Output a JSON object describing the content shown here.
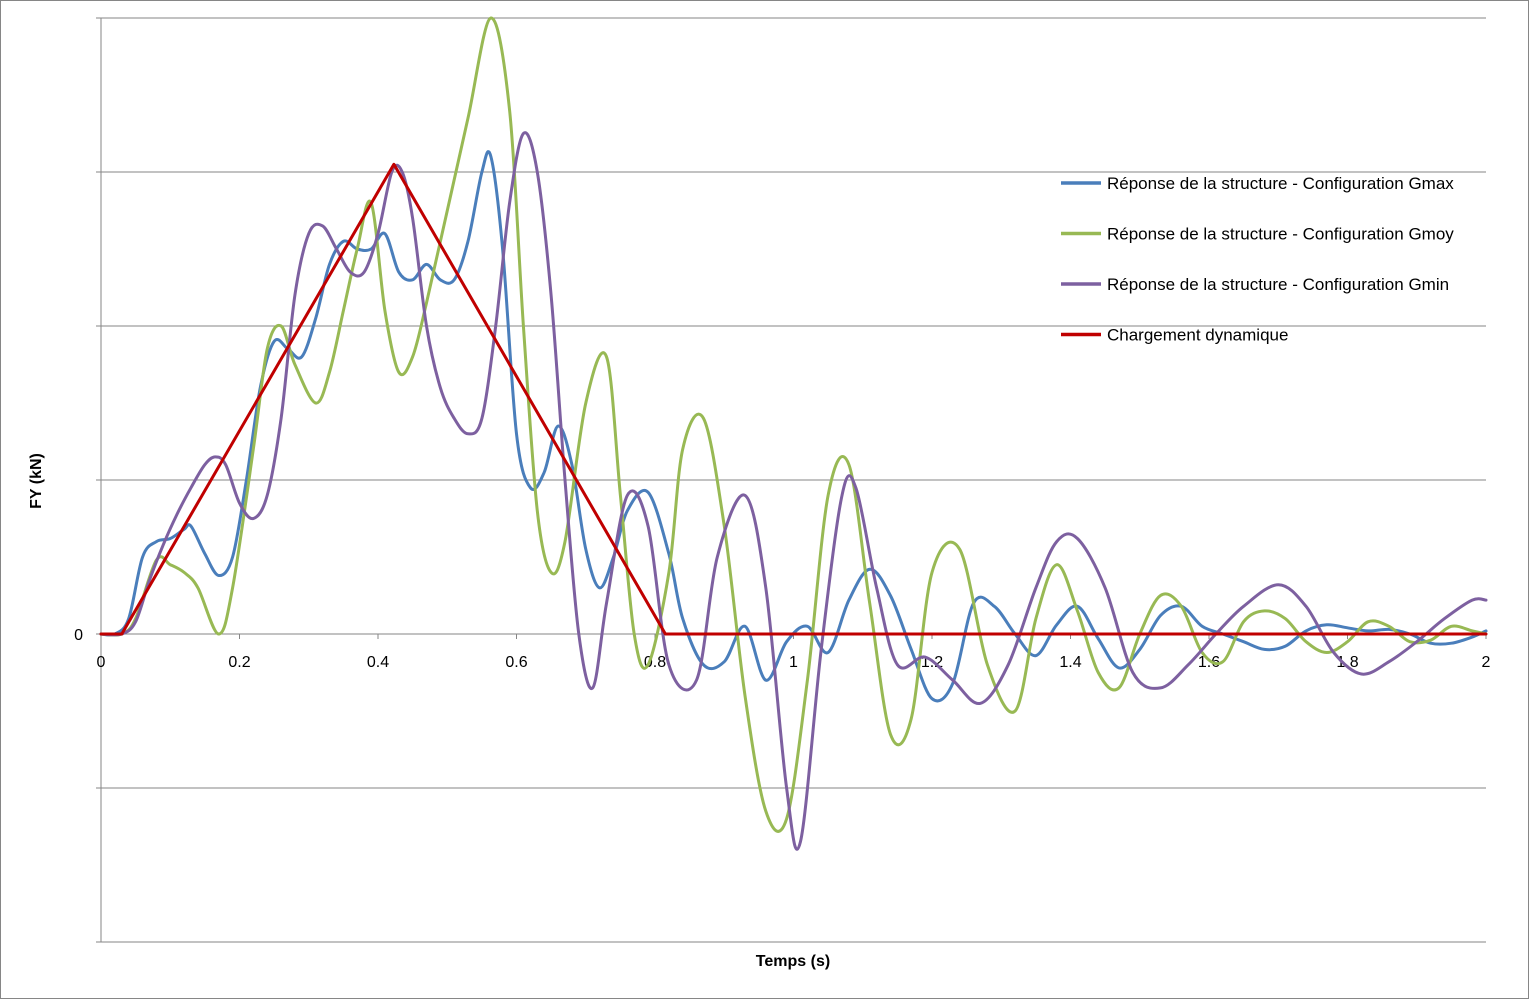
{
  "chart_data": {
    "type": "line",
    "title": "",
    "xlabel": "Temps (s)",
    "ylabel": "FY (kN)",
    "xlim": [
      0,
      2
    ],
    "x_ticks": [
      "0",
      "0.2",
      "0.4",
      "0.6",
      "0.8",
      "1",
      "1.2",
      "1.4",
      "1.6",
      "1.8",
      "2"
    ],
    "x_tick_values": [
      0,
      0.2,
      0.4,
      0.6,
      0.8,
      1.0,
      1.2,
      1.4,
      1.6,
      1.8,
      2.0
    ],
    "y_levels": [
      -2,
      -1,
      0,
      1,
      2,
      3,
      4
    ],
    "y_tick_labels": [
      {
        "level": 0,
        "text": "0"
      }
    ],
    "ylim": [
      -2,
      4
    ],
    "grid": "horizontal major gridlines",
    "legend_position": "right",
    "series": [
      {
        "name": "Réponse de la structure - Configuration Gmax",
        "color": "#4a7ebb",
        "x": [
          0,
          0.02,
          0.04,
          0.06,
          0.08,
          0.1,
          0.12,
          0.13,
          0.15,
          0.17,
          0.19,
          0.21,
          0.23,
          0.25,
          0.27,
          0.29,
          0.31,
          0.33,
          0.35,
          0.37,
          0.39,
          0.41,
          0.43,
          0.45,
          0.47,
          0.49,
          0.51,
          0.53,
          0.55,
          0.563,
          0.58,
          0.6,
          0.62,
          0.64,
          0.66,
          0.68,
          0.7,
          0.72,
          0.74,
          0.76,
          0.79,
          0.82,
          0.84,
          0.87,
          0.9,
          0.93,
          0.96,
          0.99,
          1.02,
          1.05,
          1.08,
          1.11,
          1.14,
          1.17,
          1.2,
          1.23,
          1.26,
          1.29,
          1.32,
          1.35,
          1.38,
          1.41,
          1.44,
          1.47,
          1.5,
          1.53,
          1.56,
          1.59,
          1.62,
          1.65,
          1.68,
          1.71,
          1.74,
          1.77,
          1.8,
          1.83,
          1.86,
          1.89,
          1.92,
          1.95,
          1.98,
          2.0
        ],
        "y": [
          0,
          0,
          0.1,
          0.5,
          0.6,
          0.62,
          0.68,
          0.7,
          0.52,
          0.38,
          0.5,
          1.0,
          1.6,
          1.9,
          1.85,
          1.8,
          2.05,
          2.4,
          2.55,
          2.5,
          2.5,
          2.6,
          2.35,
          2.3,
          2.4,
          2.3,
          2.3,
          2.55,
          3.0,
          3.1,
          2.5,
          1.3,
          0.95,
          1.05,
          1.35,
          1.1,
          0.55,
          0.3,
          0.5,
          0.8,
          0.92,
          0.52,
          0.1,
          -0.2,
          -0.18,
          0.05,
          -0.3,
          -0.05,
          0.05,
          -0.12,
          0.22,
          0.42,
          0.25,
          -0.1,
          -0.42,
          -0.32,
          0.2,
          0.18,
          0.0,
          -0.14,
          0.06,
          0.18,
          -0.03,
          -0.22,
          -0.1,
          0.12,
          0.18,
          0.05,
          0.0,
          -0.05,
          -0.1,
          -0.08,
          0.02,
          0.06,
          0.04,
          0.02,
          0.03,
          0.0,
          -0.06,
          -0.06,
          -0.02,
          0.02
        ]
      },
      {
        "name": "Réponse de la structure - Configuration Gmoy",
        "color": "#98b954",
        "x": [
          0,
          0.03,
          0.05,
          0.08,
          0.1,
          0.12,
          0.14,
          0.17,
          0.19,
          0.22,
          0.24,
          0.26,
          0.28,
          0.31,
          0.33,
          0.35,
          0.37,
          0.39,
          0.41,
          0.43,
          0.45,
          0.47,
          0.5,
          0.53,
          0.563,
          0.59,
          0.61,
          0.63,
          0.65,
          0.67,
          0.7,
          0.73,
          0.75,
          0.77,
          0.79,
          0.82,
          0.84,
          0.87,
          0.9,
          0.93,
          0.96,
          0.99,
          1.02,
          1.05,
          1.08,
          1.11,
          1.14,
          1.17,
          1.2,
          1.24,
          1.28,
          1.32,
          1.35,
          1.38,
          1.41,
          1.44,
          1.47,
          1.5,
          1.53,
          1.56,
          1.59,
          1.62,
          1.65,
          1.68,
          1.71,
          1.74,
          1.77,
          1.8,
          1.83,
          1.86,
          1.89,
          1.92,
          1.95,
          1.98,
          2.0
        ],
        "y": [
          0,
          0,
          0.1,
          0.48,
          0.45,
          0.4,
          0.3,
          0.0,
          0.3,
          1.2,
          1.85,
          2.0,
          1.75,
          1.5,
          1.7,
          2.1,
          2.5,
          2.8,
          2.1,
          1.7,
          1.8,
          2.15,
          2.75,
          3.35,
          4.0,
          3.4,
          2.0,
          0.8,
          0.4,
          0.6,
          1.5,
          1.8,
          0.9,
          0.0,
          -0.2,
          0.4,
          1.2,
          1.4,
          0.7,
          -0.4,
          -1.15,
          -1.2,
          -0.3,
          0.9,
          1.1,
          0.2,
          -0.65,
          -0.55,
          0.4,
          0.55,
          -0.2,
          -0.5,
          0.1,
          0.45,
          0.15,
          -0.25,
          -0.35,
          0.0,
          0.25,
          0.18,
          -0.12,
          -0.18,
          0.08,
          0.15,
          0.1,
          -0.05,
          -0.12,
          -0.05,
          0.08,
          0.05,
          -0.05,
          -0.04,
          0.05,
          0.02,
          0.0
        ]
      },
      {
        "name": "Réponse de la structure - Configuration Gmin",
        "color": "#7d60a0",
        "x": [
          0,
          0.03,
          0.05,
          0.07,
          0.09,
          0.11,
          0.13,
          0.15,
          0.165,
          0.18,
          0.2,
          0.22,
          0.24,
          0.26,
          0.28,
          0.3,
          0.32,
          0.34,
          0.36,
          0.38,
          0.4,
          0.42,
          0.435,
          0.45,
          0.47,
          0.49,
          0.51,
          0.53,
          0.55,
          0.57,
          0.59,
          0.61,
          0.63,
          0.65,
          0.67,
          0.69,
          0.71,
          0.73,
          0.76,
          0.79,
          0.82,
          0.86,
          0.89,
          0.93,
          0.96,
          0.99,
          1.01,
          1.04,
          1.07,
          1.09,
          1.12,
          1.15,
          1.19,
          1.23,
          1.27,
          1.31,
          1.35,
          1.38,
          1.41,
          1.45,
          1.49,
          1.53,
          1.57,
          1.61,
          1.65,
          1.7,
          1.74,
          1.78,
          1.82,
          1.86,
          1.9,
          1.94,
          1.98,
          2.0
        ],
        "y": [
          0,
          0,
          0.08,
          0.35,
          0.58,
          0.78,
          0.95,
          1.1,
          1.15,
          1.1,
          0.85,
          0.75,
          0.9,
          1.4,
          2.2,
          2.6,
          2.65,
          2.5,
          2.35,
          2.35,
          2.6,
          3.0,
          3.0,
          2.7,
          2.0,
          1.6,
          1.4,
          1.3,
          1.4,
          2.0,
          2.8,
          3.25,
          3.0,
          2.2,
          1.0,
          0.0,
          -0.35,
          0.2,
          0.9,
          0.7,
          -0.2,
          -0.3,
          0.5,
          0.9,
          0.3,
          -1.0,
          -1.35,
          -0.1,
          0.9,
          0.95,
          0.3,
          -0.2,
          -0.15,
          -0.3,
          -0.45,
          -0.2,
          0.3,
          0.6,
          0.62,
          0.3,
          -0.25,
          -0.35,
          -0.2,
          0.0,
          0.18,
          0.32,
          0.18,
          -0.12,
          -0.26,
          -0.18,
          -0.05,
          0.1,
          0.22,
          0.22
        ]
      },
      {
        "name": "Chargement dynamique",
        "color": "#c00000",
        "x": [
          0,
          0.03,
          0.423,
          0.815,
          2.0
        ],
        "y": [
          0,
          0,
          3.05,
          0,
          0
        ]
      }
    ]
  }
}
